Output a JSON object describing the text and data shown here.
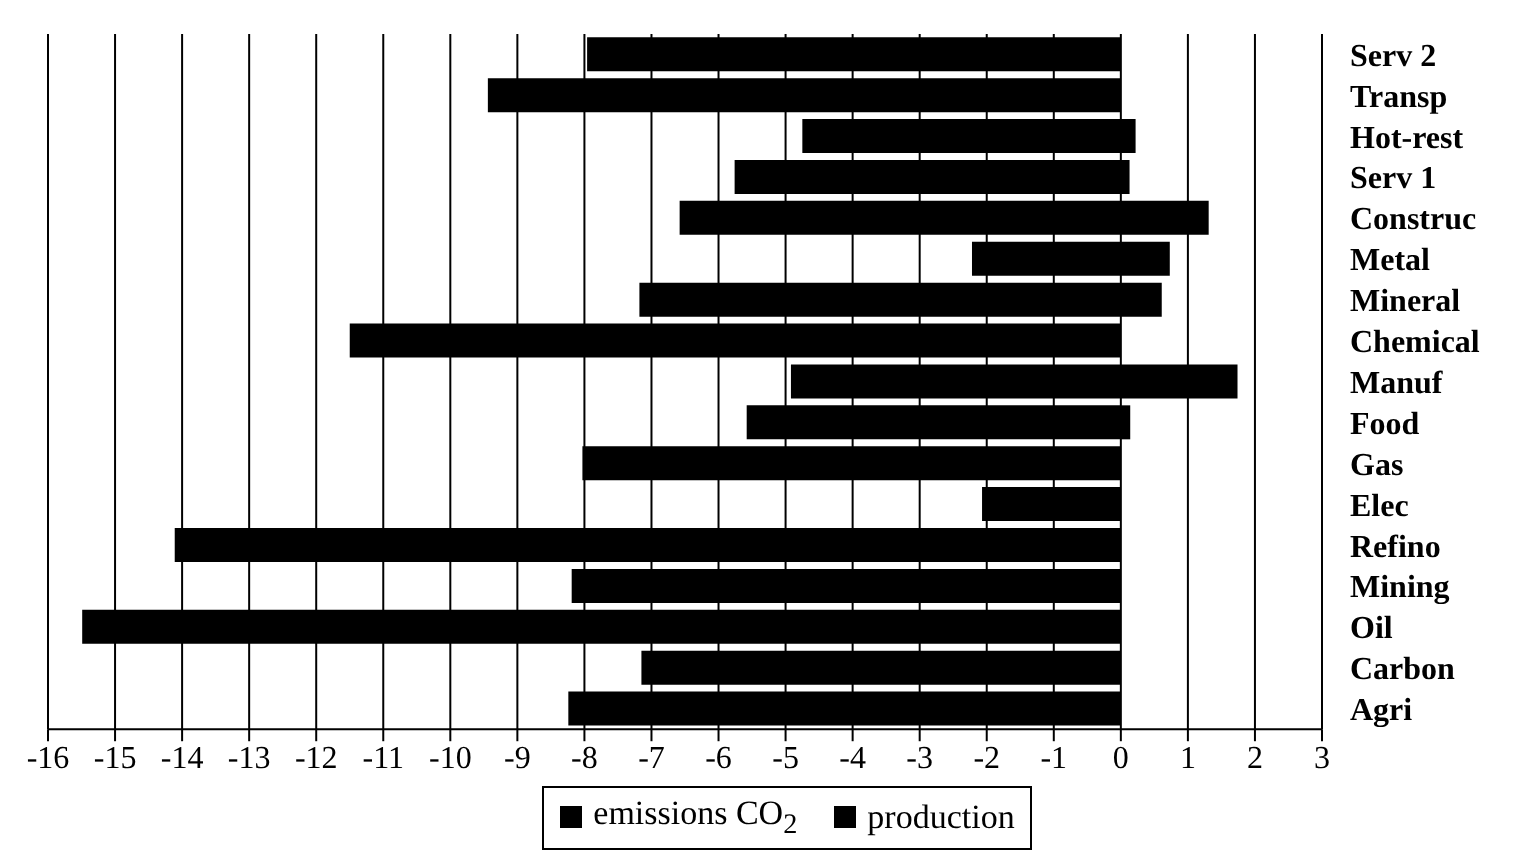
{
  "chart_data": {
    "type": "bar",
    "orientation": "horizontal",
    "stacked": true,
    "categories": [
      "Serv 2",
      "Transp",
      "Hot-rest",
      "Serv 1",
      "Construc",
      "Metal",
      "Mineral",
      "Chemical",
      "Manuf",
      "Food",
      "Gas",
      "Elec",
      "Refino",
      "Mining",
      "Oil",
      "Carbon",
      "Agri"
    ],
    "series": [
      {
        "name": "emissions CO$_{2}$",
        "color": "#000000",
        "values": [
          -7.96,
          -9.44,
          -4.75,
          -5.76,
          -6.58,
          -2.22,
          -7.18,
          -11.5,
          -4.92,
          -5.58,
          -8.03,
          -2.07,
          -14.11,
          -8.19,
          -15.49,
          -7.15,
          -8.24
        ]
      },
      {
        "name": "production",
        "color": "#000000",
        "values": [
          0,
          0,
          0.22,
          0.13,
          1.31,
          0.73,
          0.61,
          0,
          1.74,
          0.14,
          0,
          0,
          0,
          0,
          0,
          0,
          0
        ]
      }
    ],
    "xlim": [
      -16,
      3
    ],
    "xticks": [
      -16,
      -15,
      -14,
      -13,
      -12,
      -11,
      -10,
      -9,
      -8,
      -7,
      -6,
      -5,
      -4,
      -3,
      -2,
      -1,
      0,
      1,
      2,
      3
    ],
    "grid": "x",
    "legend": "bottom"
  }
}
